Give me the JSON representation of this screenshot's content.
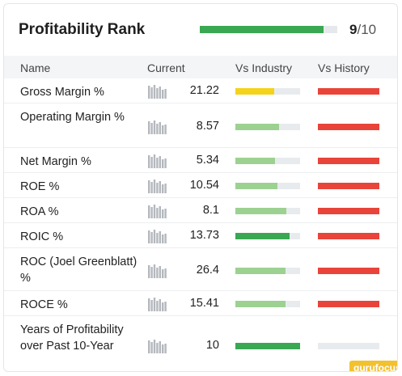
{
  "header": {
    "title": "Profitability Rank",
    "score": "9",
    "sep": "/",
    "out_of": "10",
    "fill_fraction": 0.9,
    "bar_color": "#3aa852"
  },
  "columns": {
    "name": "Name",
    "current": "Current",
    "industry": "Vs Industry",
    "history": "Vs History"
  },
  "colors": {
    "green_dark": "#3aa852",
    "green_light": "#9cd191",
    "yellow": "#f5d21b",
    "red": "#e8443a",
    "spark": "#b4b8bd"
  },
  "rows": [
    {
      "label": "Gross Margin %",
      "value": "21.22",
      "industry_fraction": 0.6,
      "industry_color": "#f5d21b",
      "history_fraction": 1.0,
      "history_color": "#e8443a"
    },
    {
      "label": "Operating Margin %",
      "value": "8.57",
      "industry_fraction": 0.68,
      "industry_color": "#9cd191",
      "history_fraction": 1.0,
      "history_color": "#e8443a"
    },
    {
      "label": "Net Margin %",
      "value": "5.34",
      "industry_fraction": 0.61,
      "industry_color": "#9cd191",
      "history_fraction": 1.0,
      "history_color": "#e8443a"
    },
    {
      "label": "ROE %",
      "value": "10.54",
      "industry_fraction": 0.65,
      "industry_color": "#9cd191",
      "history_fraction": 1.0,
      "history_color": "#e8443a"
    },
    {
      "label": "ROA %",
      "value": "8.1",
      "industry_fraction": 0.79,
      "industry_color": "#9cd191",
      "history_fraction": 1.0,
      "history_color": "#e8443a"
    },
    {
      "label": "ROIC %",
      "value": "13.73",
      "industry_fraction": 0.84,
      "industry_color": "#3aa852",
      "history_fraction": 1.0,
      "history_color": "#e8443a"
    },
    {
      "label": "ROC (Joel Greenblatt) %",
      "value": "26.4",
      "industry_fraction": 0.78,
      "industry_color": "#9cd191",
      "history_fraction": 1.0,
      "history_color": "#e8443a"
    },
    {
      "label": "ROCE %",
      "value": "15.41",
      "industry_fraction": 0.77,
      "industry_color": "#9cd191",
      "history_fraction": 1.0,
      "history_color": "#e8443a"
    },
    {
      "label": "Years of Profitability over Past 10-Year",
      "value": "10",
      "industry_fraction": 1.0,
      "industry_color": "#3aa852",
      "history_fraction": 0.0,
      "history_color": "#e8443a"
    }
  ],
  "logo": {
    "text": "gurufocus"
  }
}
